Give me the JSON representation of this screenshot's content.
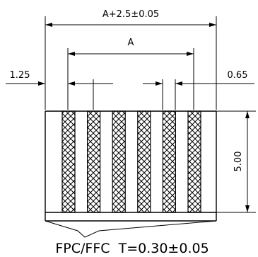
{
  "dimensions": {
    "overall_width": "A+2.5±0.05",
    "pitch_span": "A",
    "left_margin": "1.25",
    "conductor_width": "0.65",
    "height": "5.00"
  },
  "caption": "FPC/FFC  T=0.30±0.05",
  "conductor_count": 6
}
